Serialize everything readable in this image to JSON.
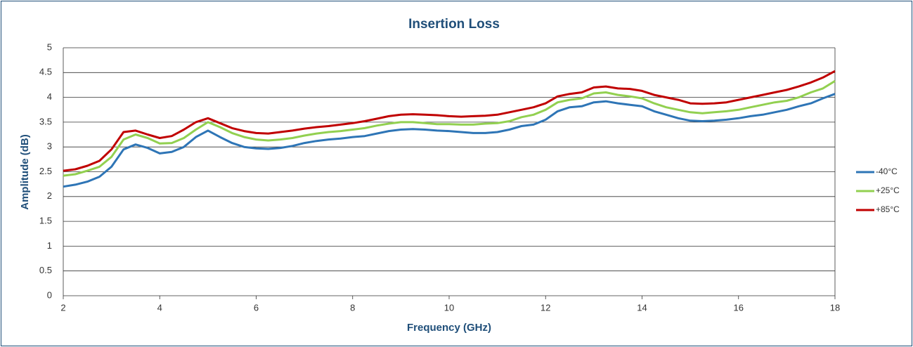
{
  "chart_data": {
    "type": "line",
    "title": "Insertion Loss",
    "xlabel": "Frequency (GHz)",
    "ylabel": "Amplitude (dB)",
    "x": [
      2,
      2.25,
      2.5,
      2.75,
      3,
      3.25,
      3.5,
      3.75,
      4,
      4.25,
      4.5,
      4.75,
      5,
      5.25,
      5.5,
      5.75,
      6,
      6.25,
      6.5,
      6.75,
      7,
      7.25,
      7.5,
      7.75,
      8,
      8.25,
      8.5,
      8.75,
      9,
      9.25,
      9.5,
      9.75,
      10,
      10.25,
      10.5,
      10.75,
      11,
      11.25,
      11.5,
      11.75,
      12,
      12.25,
      12.5,
      12.75,
      13,
      13.25,
      13.5,
      13.75,
      14,
      14.25,
      14.5,
      14.75,
      15,
      15.25,
      15.5,
      15.75,
      16,
      16.25,
      16.5,
      16.75,
      17,
      17.25,
      17.5,
      17.75,
      18
    ],
    "series": [
      {
        "name": "-40°C",
        "color": "#2e75b6",
        "values": [
          2.2,
          2.24,
          2.3,
          2.4,
          2.6,
          2.95,
          3.05,
          2.98,
          2.87,
          2.9,
          3.0,
          3.2,
          3.33,
          3.2,
          3.08,
          3.0,
          2.97,
          2.96,
          2.98,
          3.02,
          3.08,
          3.12,
          3.15,
          3.17,
          3.2,
          3.22,
          3.27,
          3.32,
          3.35,
          3.36,
          3.35,
          3.33,
          3.32,
          3.3,
          3.28,
          3.28,
          3.3,
          3.35,
          3.42,
          3.45,
          3.55,
          3.72,
          3.8,
          3.82,
          3.9,
          3.92,
          3.88,
          3.85,
          3.82,
          3.72,
          3.65,
          3.58,
          3.53,
          3.52,
          3.53,
          3.55,
          3.58,
          3.62,
          3.65,
          3.7,
          3.75,
          3.82,
          3.88,
          3.98,
          4.07
        ]
      },
      {
        "name": "+25°C",
        "color": "#92d050",
        "values": [
          2.42,
          2.45,
          2.52,
          2.6,
          2.8,
          3.15,
          3.25,
          3.18,
          3.07,
          3.08,
          3.18,
          3.35,
          3.5,
          3.4,
          3.28,
          3.2,
          3.15,
          3.13,
          3.15,
          3.18,
          3.23,
          3.27,
          3.3,
          3.32,
          3.35,
          3.38,
          3.43,
          3.47,
          3.5,
          3.5,
          3.48,
          3.46,
          3.46,
          3.45,
          3.45,
          3.47,
          3.48,
          3.52,
          3.6,
          3.65,
          3.75,
          3.9,
          3.95,
          3.98,
          4.08,
          4.1,
          4.05,
          4.02,
          3.98,
          3.88,
          3.8,
          3.75,
          3.7,
          3.68,
          3.7,
          3.72,
          3.75,
          3.8,
          3.85,
          3.9,
          3.93,
          4.0,
          4.1,
          4.18,
          4.33
        ]
      },
      {
        "name": "+85°C",
        "color": "#c00000",
        "values": [
          2.52,
          2.55,
          2.62,
          2.72,
          2.95,
          3.3,
          3.33,
          3.25,
          3.18,
          3.22,
          3.35,
          3.5,
          3.58,
          3.48,
          3.38,
          3.32,
          3.28,
          3.27,
          3.3,
          3.33,
          3.37,
          3.4,
          3.42,
          3.45,
          3.48,
          3.52,
          3.57,
          3.62,
          3.65,
          3.66,
          3.65,
          3.64,
          3.62,
          3.61,
          3.62,
          3.63,
          3.65,
          3.7,
          3.75,
          3.8,
          3.88,
          4.02,
          4.07,
          4.1,
          4.2,
          4.22,
          4.18,
          4.17,
          4.13,
          4.05,
          4.0,
          3.95,
          3.88,
          3.87,
          3.88,
          3.9,
          3.95,
          4.0,
          4.05,
          4.1,
          4.15,
          4.22,
          4.3,
          4.4,
          4.53
        ]
      }
    ],
    "xlim": [
      2,
      18
    ],
    "xticks": [
      2,
      4,
      6,
      8,
      10,
      12,
      14,
      16,
      18
    ],
    "ylim": [
      0,
      5
    ],
    "yticks": [
      0,
      0.5,
      1,
      1.5,
      2,
      2.5,
      3,
      3.5,
      4,
      4.5,
      5
    ],
    "grid": true,
    "legend": "right"
  }
}
